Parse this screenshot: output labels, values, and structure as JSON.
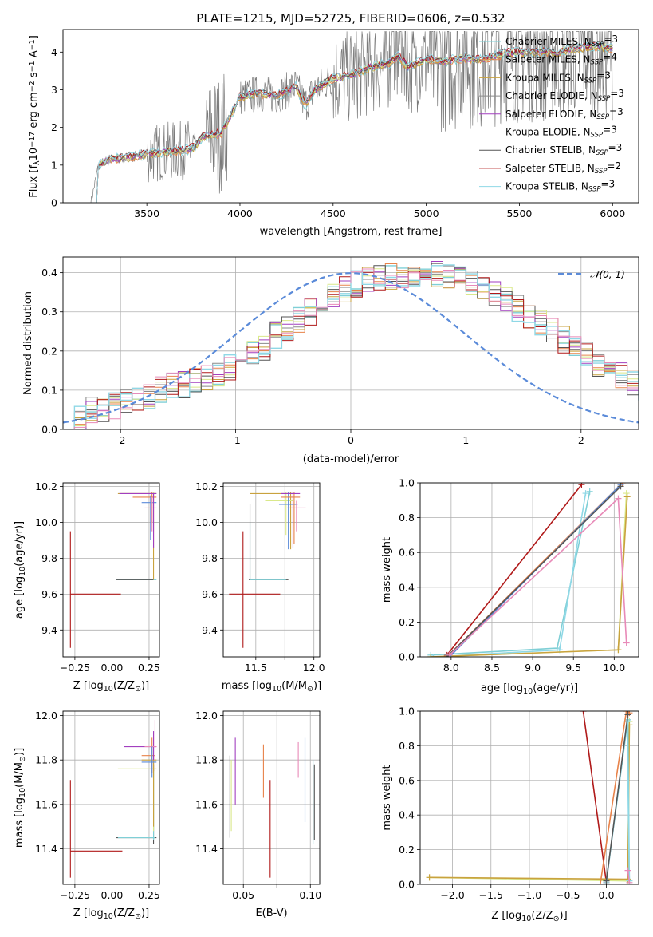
{
  "chart_data": [
    {
      "type": "line",
      "title": "PLATE=1215, MJD=52725, FIBERID=0606, z=0.532",
      "xlabel": "wavelength [Angstrom, rest frame]",
      "ylabel": "Flux [f$_\\lambda$10$^{-17}$ erg cm$^{-2}$ s$^{-1}$ A$^{-1}$]",
      "ylabel_parts": {
        "pre": "Flux [f",
        "lam": "λ",
        "ten": "10",
        "e1": "−17",
        "mid1": " erg cm",
        "e2": "−2",
        "mid2": " s",
        "e3": "−1",
        "mid3": " A",
        "e4": "−1",
        "post": "]"
      },
      "xlim": [
        3050,
        6140
      ],
      "ylim": [
        0,
        4.6
      ],
      "xticks": [
        3500,
        4000,
        4500,
        5000,
        5500,
        6000
      ],
      "yticks": [
        0,
        1,
        2,
        3,
        4
      ],
      "legend_position": "top-right",
      "legend": [
        {
          "name": "Chabrier MILES",
          "nssp": "3",
          "color": "#7fcfd6"
        },
        {
          "name": "Salpeter MILES",
          "nssp": "4",
          "color": "#e8834a"
        },
        {
          "name": "Kroupa MILES",
          "nssp": "3",
          "color": "#c9a23e"
        },
        {
          "name": "Chabrier ELODIE",
          "nssp": "3",
          "color": "#8a8a8a"
        },
        {
          "name": "Salpeter ELODIE",
          "nssp": "3",
          "color": "#a23fbf"
        },
        {
          "name": "Kroupa ELODIE",
          "nssp": "3",
          "color": "#d9e88a"
        },
        {
          "name": "Chabrier STELIB",
          "nssp": "3",
          "color": "#555555"
        },
        {
          "name": "Salpeter STELIB",
          "nssp": "2",
          "color": "#b01a1a"
        },
        {
          "name": "Kroupa STELIB",
          "nssp": "3",
          "color": "#8fd8e6"
        }
      ],
      "legend_sub": "SSP",
      "legend_label_prefix": "N",
      "model_x": [
        3200,
        3240,
        3300,
        3400,
        3500,
        3600,
        3700,
        3750,
        3800,
        3900,
        4000,
        4100,
        4200,
        4300,
        4350,
        4400,
        4500,
        4600,
        4700,
        4800,
        4850,
        4900,
        5000,
        5100,
        5200,
        5300,
        5400,
        5500,
        5600,
        5700,
        5800,
        5900,
        6000
      ],
      "model_y": [
        0.0,
        1.0,
        1.15,
        1.2,
        1.3,
        1.35,
        1.4,
        1.45,
        1.75,
        1.85,
        2.8,
        2.9,
        2.85,
        3.1,
        2.6,
        3.0,
        3.3,
        3.4,
        3.6,
        3.7,
        3.9,
        3.6,
        3.8,
        3.75,
        3.85,
        3.8,
        3.95,
        4.0,
        4.0,
        4.0,
        4.1,
        4.15,
        4.1
      ]
    },
    {
      "type": "line",
      "xlabel": "(data-model)/error",
      "ylabel": "Normed distribution",
      "xlim": [
        -2.5,
        2.5
      ],
      "ylim": [
        0,
        0.44
      ],
      "xticks": [
        -2,
        -1,
        0,
        1,
        2
      ],
      "yticks": [
        0.0,
        0.1,
        0.2,
        0.3,
        0.4
      ],
      "grid": true,
      "legend_position": "top-right",
      "legend": [
        {
          "name": "𝒩(0, 1)",
          "color": "#5b8bd9",
          "style": "dashed"
        }
      ],
      "bin_edges_start": -2.5,
      "bin_width": 0.1,
      "hist_base": [
        0.024,
        0.026,
        0.05,
        0.055,
        0.06,
        0.07,
        0.08,
        0.085,
        0.1,
        0.11,
        0.115,
        0.125,
        0.135,
        0.145,
        0.16,
        0.18,
        0.2,
        0.21,
        0.24,
        0.26,
        0.28,
        0.3,
        0.32,
        0.34,
        0.36,
        0.37,
        0.38,
        0.385,
        0.39,
        0.395,
        0.4,
        0.4,
        0.395,
        0.39,
        0.385,
        0.375,
        0.36,
        0.35,
        0.33,
        0.31,
        0.29,
        0.27,
        0.25,
        0.23,
        0.21,
        0.19,
        0.17,
        0.15,
        0.135,
        0.12,
        0.11
      ],
      "hist_series_colors": [
        "#7fcfd6",
        "#e8834a",
        "#c9a23e",
        "#8a8a8a",
        "#a23fbf",
        "#d9e88a",
        "#555555",
        "#b01a1a",
        "#8fd8e6",
        "#e88ab8"
      ]
    },
    {
      "type": "scatter",
      "xlabel": "Z [log$_{10}$($Z/Z_\\odot$)]",
      "ylabel": "age  [log$_{10}$($age/yr$)]",
      "xlim": [
        -0.33,
        0.32
      ],
      "ylim": [
        9.25,
        10.22
      ],
      "xticks": [
        -0.25,
        0.0,
        0.25
      ],
      "xticklabels": [
        "−0.25",
        "0.00",
        "0.25"
      ],
      "yticks": [
        9.4,
        9.6,
        9.8,
        10.0,
        10.2
      ],
      "grid": true,
      "points": [
        {
          "x": -0.28,
          "y": 9.6,
          "xlo": -0.28,
          "xhi": 0.06,
          "ylo": 9.3,
          "yhi": 9.95,
          "color": "#b01a1a"
        },
        {
          "x": 0.28,
          "y": 9.68,
          "xlo": 0.03,
          "xhi": 0.3,
          "ylo": 9.68,
          "yhi": 9.68,
          "color": "#7fcfd6"
        },
        {
          "x": 0.28,
          "y": 9.68,
          "xlo": 0.03,
          "xhi": 0.28,
          "ylo": 9.68,
          "yhi": 9.68,
          "color": "#555555"
        },
        {
          "x": 0.28,
          "y": 10.16,
          "xlo": 0.04,
          "xhi": 0.3,
          "ylo": 9.68,
          "yhi": 10.17,
          "color": "#c9a23e"
        },
        {
          "x": 0.28,
          "y": 10.16,
          "xlo": 0.06,
          "xhi": 0.3,
          "ylo": 10.12,
          "yhi": 10.17,
          "color": "#d9e88a"
        },
        {
          "x": 0.27,
          "y": 10.14,
          "xlo": 0.14,
          "xhi": 0.3,
          "ylo": 10.0,
          "yhi": 10.17,
          "color": "#e8834a"
        },
        {
          "x": 0.26,
          "y": 10.11,
          "xlo": 0.2,
          "xhi": 0.3,
          "ylo": 9.9,
          "yhi": 10.15,
          "color": "#5b8bd9"
        },
        {
          "x": 0.27,
          "y": 10.08,
          "xlo": 0.22,
          "xhi": 0.3,
          "ylo": 9.95,
          "yhi": 10.14,
          "color": "#e88ab8"
        },
        {
          "x": 0.28,
          "y": 10.16,
          "xlo": 0.05,
          "xhi": 0.3,
          "ylo": 9.86,
          "yhi": 10.16,
          "color": "#a23fbf"
        }
      ]
    },
    {
      "type": "scatter",
      "xlabel": "mass [log$_{10}$($M/M_\\odot$)]",
      "ylabel": "",
      "xlim": [
        11.22,
        12.05
      ],
      "ylim": [
        9.25,
        10.22
      ],
      "xticks": [
        11.5,
        11.75,
        12.0
      ],
      "xticklabels": [
        "11.5",
        "",
        "12.0"
      ],
      "yticks": [
        9.4,
        9.6,
        9.8,
        10.0,
        10.2
      ],
      "grid": true,
      "points": [
        {
          "x": 11.39,
          "y": 9.6,
          "xlo": 11.27,
          "xhi": 11.71,
          "ylo": 9.3,
          "yhi": 9.95,
          "color": "#b01a1a"
        },
        {
          "x": 11.45,
          "y": 9.68,
          "xlo": 11.44,
          "xhi": 11.78,
          "ylo": 9.68,
          "yhi": 10.1,
          "color": "#555555"
        },
        {
          "x": 11.45,
          "y": 9.68,
          "xlo": 11.45,
          "xhi": 11.76,
          "ylo": 9.68,
          "yhi": 10.0,
          "color": "#7fcfd6"
        },
        {
          "x": 11.8,
          "y": 10.16,
          "xlo": 11.45,
          "xhi": 11.82,
          "ylo": 9.85,
          "yhi": 10.17,
          "color": "#c9a23e"
        },
        {
          "x": 11.76,
          "y": 10.12,
          "xlo": 11.58,
          "xhi": 11.82,
          "ylo": 9.93,
          "yhi": 10.17,
          "color": "#d9e88a"
        },
        {
          "x": 11.78,
          "y": 10.1,
          "xlo": 11.7,
          "xhi": 11.86,
          "ylo": 9.85,
          "yhi": 10.17,
          "color": "#5b8bd9"
        },
        {
          "x": 11.83,
          "y": 10.14,
          "xlo": 11.72,
          "xhi": 11.88,
          "ylo": 9.88,
          "yhi": 10.17,
          "color": "#e8834a"
        },
        {
          "x": 11.85,
          "y": 10.08,
          "xlo": 11.77,
          "xhi": 11.93,
          "ylo": 9.95,
          "yhi": 10.12,
          "color": "#e88ab8"
        },
        {
          "x": 11.82,
          "y": 10.16,
          "xlo": 11.72,
          "xhi": 11.88,
          "ylo": 9.86,
          "yhi": 10.17,
          "color": "#a23fbf"
        }
      ]
    },
    {
      "type": "line",
      "xlabel": "age  [log$_{10}$($age/yr$)]",
      "ylabel": "mass weight",
      "xlim": [
        7.62,
        10.3
      ],
      "ylim": [
        0,
        1.0
      ],
      "xticks": [
        8.0,
        8.5,
        9.0,
        9.5,
        10.0
      ],
      "yticks": [
        0.0,
        0.2,
        0.4,
        0.6,
        0.8,
        1.0
      ],
      "grid": true,
      "series": [
        {
          "color": "#b01a1a",
          "x": [
            7.95,
            9.6
          ],
          "y": [
            0.01,
            0.99
          ]
        },
        {
          "color": "#7fcfd6",
          "x": [
            7.75,
            9.3,
            9.7
          ],
          "y": [
            0.01,
            0.05,
            0.95
          ]
        },
        {
          "color": "#8fd8e6",
          "x": [
            7.78,
            9.33,
            9.65
          ],
          "y": [
            0.0,
            0.04,
            0.94
          ]
        },
        {
          "color": "#d9e88a",
          "x": [
            7.75,
            10.05,
            10.15
          ],
          "y": [
            0.0,
            0.04,
            0.94
          ]
        },
        {
          "color": "#c9a23e",
          "x": [
            7.75,
            10.05,
            10.16
          ],
          "y": [
            0.0,
            0.04,
            0.92
          ]
        },
        {
          "color": "#e8834a",
          "x": [
            7.95,
            10.1
          ],
          "y": [
            0.0,
            1.0
          ]
        },
        {
          "color": "#5b8bd9",
          "x": [
            7.98,
            10.08
          ],
          "y": [
            0.0,
            0.99
          ]
        },
        {
          "color": "#555555",
          "x": [
            7.95,
            10.08
          ],
          "y": [
            0.0,
            0.98
          ]
        },
        {
          "color": "#e88ab8",
          "x": [
            7.98,
            10.05,
            10.15
          ],
          "y": [
            0.01,
            0.91,
            0.08
          ]
        }
      ]
    },
    {
      "type": "scatter",
      "xlabel": "Z [log$_{10}$($Z/Z_\\odot$)]",
      "ylabel": "mass [log$_{10}$($M/M_\\odot$)]",
      "xlim": [
        -0.33,
        0.32
      ],
      "ylim": [
        11.24,
        12.02
      ],
      "xticks": [
        -0.25,
        0.0,
        0.25
      ],
      "xticklabels": [
        "−0.25",
        "0.00",
        "0.25"
      ],
      "yticks": [
        11.4,
        11.6,
        11.8,
        12.0
      ],
      "grid": true,
      "points": [
        {
          "x": -0.28,
          "y": 11.39,
          "xlo": -0.28,
          "xhi": 0.07,
          "ylo": 11.27,
          "yhi": 11.71,
          "color": "#b01a1a"
        },
        {
          "x": 0.28,
          "y": 11.45,
          "xlo": 0.03,
          "xhi": 0.3,
          "ylo": 11.42,
          "yhi": 11.78,
          "color": "#555555"
        },
        {
          "x": 0.28,
          "y": 11.45,
          "xlo": 0.04,
          "xhi": 0.29,
          "ylo": 11.44,
          "yhi": 11.76,
          "color": "#7fcfd6"
        },
        {
          "x": 0.28,
          "y": 11.76,
          "xlo": 0.04,
          "xhi": 0.3,
          "ylo": 11.48,
          "yhi": 11.8,
          "color": "#d9e88a"
        },
        {
          "x": 0.28,
          "y": 11.8,
          "xlo": 0.2,
          "xhi": 0.3,
          "ylo": 11.5,
          "yhi": 11.82,
          "color": "#c9a23e"
        },
        {
          "x": 0.27,
          "y": 11.82,
          "xlo": 0.2,
          "xhi": 0.29,
          "ylo": 11.74,
          "yhi": 11.9,
          "color": "#e8834a"
        },
        {
          "x": 0.28,
          "y": 11.86,
          "xlo": 0.08,
          "xhi": 0.3,
          "ylo": 11.8,
          "yhi": 11.93,
          "color": "#a23fbf"
        },
        {
          "x": 0.29,
          "y": 11.86,
          "xlo": 0.22,
          "xhi": 0.3,
          "ylo": 11.75,
          "yhi": 11.98,
          "color": "#e88ab8"
        },
        {
          "x": 0.27,
          "y": 11.79,
          "xlo": 0.2,
          "xhi": 0.3,
          "ylo": 11.72,
          "yhi": 11.86,
          "color": "#5b8bd9"
        }
      ]
    },
    {
      "type": "scatter",
      "xlabel": "E(B-V)",
      "ylabel": "",
      "xlim": [
        0.035,
        0.107
      ],
      "ylim": [
        11.24,
        12.02
      ],
      "xticks": [
        0.05,
        0.075,
        0.1
      ],
      "xticklabels": [
        "0.05",
        "",
        "0.10"
      ],
      "yticks": [
        11.4,
        11.6,
        11.8,
        12.0
      ],
      "grid": true,
      "points": [
        {
          "x": 0.04,
          "y": 11.6,
          "xlo": 0.04,
          "xhi": 0.04,
          "ylo": 11.45,
          "yhi": 11.82,
          "color": "#555555"
        },
        {
          "x": 0.041,
          "y": 11.62,
          "xlo": 0.041,
          "xhi": 0.041,
          "ylo": 11.48,
          "yhi": 11.8,
          "color": "#d9e88a"
        },
        {
          "x": 0.044,
          "y": 11.75,
          "xlo": 0.044,
          "xhi": 0.044,
          "ylo": 11.6,
          "yhi": 11.9,
          "color": "#a23fbf"
        },
        {
          "x": 0.065,
          "y": 11.75,
          "xlo": 0.065,
          "xhi": 0.065,
          "ylo": 11.63,
          "yhi": 11.87,
          "color": "#e8834a"
        },
        {
          "x": 0.07,
          "y": 11.39,
          "xlo": 0.07,
          "xhi": 0.07,
          "ylo": 11.27,
          "yhi": 11.71,
          "color": "#b01a1a"
        },
        {
          "x": 0.091,
          "y": 11.8,
          "xlo": 0.091,
          "xhi": 0.091,
          "ylo": 11.72,
          "yhi": 11.88,
          "color": "#e88ab8"
        },
        {
          "x": 0.096,
          "y": 11.7,
          "xlo": 0.096,
          "xhi": 0.096,
          "ylo": 11.52,
          "yhi": 11.9,
          "color": "#5b8bd9"
        },
        {
          "x": 0.102,
          "y": 11.62,
          "xlo": 0.102,
          "xhi": 0.102,
          "ylo": 11.42,
          "yhi": 11.8,
          "color": "#7fcfd6"
        },
        {
          "x": 0.103,
          "y": 11.62,
          "xlo": 0.103,
          "xhi": 0.103,
          "ylo": 11.44,
          "yhi": 11.78,
          "color": "#555555"
        }
      ]
    },
    {
      "type": "line",
      "xlabel": "Z [log$_{10}$($Z/Z_\\odot$)]",
      "ylabel": "mass weight",
      "xlim": [
        -2.42,
        0.42
      ],
      "ylim": [
        0,
        1.0
      ],
      "xticks": [
        -2.0,
        -1.5,
        -1.0,
        -0.5,
        0.0
      ],
      "xticklabels": [
        "−2.0",
        "−1.5",
        "−1.0",
        "−0.5",
        "0.0"
      ],
      "yticks": [
        0.0,
        0.2,
        0.4,
        0.6,
        0.8,
        1.0
      ],
      "grid": true,
      "series": [
        {
          "color": "#b01a1a",
          "x": [
            -0.3,
            0.0
          ],
          "y": [
            1.0,
            0.01
          ]
        },
        {
          "color": "#d9e88a",
          "x": [
            -2.3,
            0.28,
            0.3
          ],
          "y": [
            0.04,
            0.02,
            0.94
          ]
        },
        {
          "color": "#c9a23e",
          "x": [
            -2.3,
            0.28,
            0.3
          ],
          "y": [
            0.04,
            0.03,
            0.92
          ]
        },
        {
          "color": "#7fcfd6",
          "x": [
            0.0,
            0.28,
            0.3
          ],
          "y": [
            0.02,
            0.95,
            0.0
          ]
        },
        {
          "color": "#8fd8e6",
          "x": [
            0.0,
            0.27,
            0.3
          ],
          "y": [
            0.01,
            0.94,
            0.02
          ]
        },
        {
          "color": "#e8834a",
          "x": [
            -0.08,
            0.26,
            0.3
          ],
          "y": [
            0.0,
            1.0,
            0.99
          ]
        },
        {
          "color": "#e88ab8",
          "x": [
            0.28,
            0.3
          ],
          "y": [
            0.08,
            0.01
          ]
        },
        {
          "color": "#555555",
          "x": [
            0.0,
            0.28
          ],
          "y": [
            0.02,
            0.98
          ]
        }
      ]
    }
  ]
}
